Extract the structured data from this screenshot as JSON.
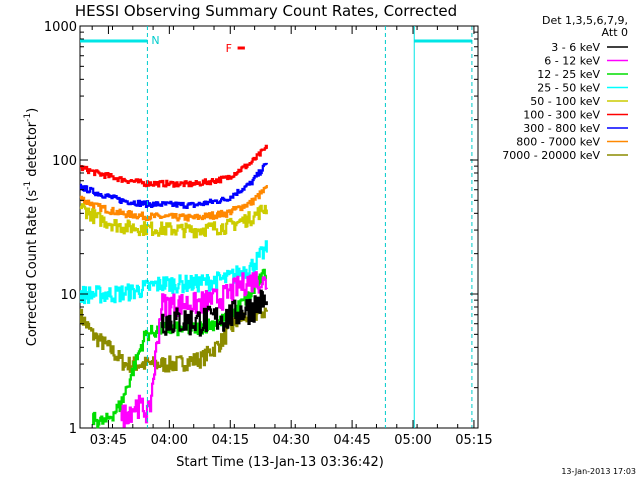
{
  "chart_data": {
    "type": "line",
    "title": "HESSI Observing Summary Count Rates, Corrected",
    "xlabel": "Start Time (13-Jan-13 03:36:42)",
    "ylabel": "Corrected Count Rate (s",
    "ylabel_sup1": "-1",
    "ylabel_mid": " detector",
    "ylabel_sup2": "-1",
    "ylabel_end": ")",
    "yscale": "log",
    "ylim": [
      1,
      1000
    ],
    "xlim_minutes_after_0336": [
      2,
      100
    ],
    "x_ticks": [
      {
        "label": "03:45",
        "min": 9
      },
      {
        "label": "04:00",
        "min": 24
      },
      {
        "label": "04:15",
        "min": 39
      },
      {
        "label": "04:30",
        "min": 54
      },
      {
        "label": "04:45",
        "min": 69
      },
      {
        "label": "05:00",
        "min": 84
      },
      {
        "label": "05:15",
        "min": 99
      }
    ],
    "y_ticks": [
      {
        "label": "1",
        "v": 1
      },
      {
        "label": "10",
        "v": 10
      },
      {
        "label": "100",
        "v": 100
      },
      {
        "label": "1000",
        "v": 1000
      }
    ],
    "legend_header": [
      "Det 1,3,5,6,7,9,",
      "Att 0"
    ],
    "series": [
      {
        "name": "3 - 6 keV",
        "color": "#000000",
        "profile": [
          [
            18,
            4.6
          ],
          [
            22,
            6.5
          ],
          [
            30,
            6.3
          ],
          [
            38,
            6.8
          ],
          [
            44,
            8
          ],
          [
            47,
            9
          ],
          [
            48,
            8
          ]
        ],
        "noise": 0.25,
        "start": 22
      },
      {
        "name": "6 - 12 keV",
        "color": "#ff00ff",
        "profile": [
          [
            10,
            1.1
          ],
          [
            16,
            1.5
          ],
          [
            19,
            1.3
          ],
          [
            22,
            8.5
          ],
          [
            30,
            8.5
          ],
          [
            37,
            9.5
          ],
          [
            42,
            12
          ],
          [
            45,
            13
          ],
          [
            48,
            12
          ]
        ],
        "noise": 0.2,
        "start": 12
      },
      {
        "name": "12 - 25 keV",
        "color": "#00dd00",
        "profile": [
          [
            4,
            1.2
          ],
          [
            8,
            1.1
          ],
          [
            12,
            1.5
          ],
          [
            18,
            5
          ],
          [
            22,
            5.5
          ],
          [
            30,
            5.5
          ],
          [
            38,
            6.5
          ],
          [
            44,
            10
          ],
          [
            48,
            15
          ]
        ],
        "noise": 0.12,
        "start": 5
      },
      {
        "name": "25 - 50 keV",
        "color": "#00ffff",
        "profile": [
          [
            2,
            10
          ],
          [
            10,
            10
          ],
          [
            15,
            10.5
          ],
          [
            22,
            12
          ],
          [
            30,
            12
          ],
          [
            38,
            13
          ],
          [
            44,
            16
          ],
          [
            48,
            22
          ]
        ],
        "noise": 0.15,
        "start": 2
      },
      {
        "name": "50 - 100 keV",
        "color": "#cccc00",
        "profile": [
          [
            2,
            45
          ],
          [
            6,
            37
          ],
          [
            12,
            32
          ],
          [
            18,
            31
          ],
          [
            30,
            30
          ],
          [
            38,
            32
          ],
          [
            44,
            37
          ],
          [
            48,
            45
          ]
        ],
        "noise": 0.12,
        "start": 2
      },
      {
        "name": "100 - 300 keV",
        "color": "#ff0000",
        "profile": [
          [
            2,
            88
          ],
          [
            6,
            80
          ],
          [
            12,
            72
          ],
          [
            18,
            67
          ],
          [
            30,
            66
          ],
          [
            38,
            73
          ],
          [
            44,
            95
          ],
          [
            48,
            125
          ]
        ],
        "noise": 0.05,
        "start": 2
      },
      {
        "name": "300 - 800 keV",
        "color": "#0000ff",
        "profile": [
          [
            2,
            63
          ],
          [
            6,
            57
          ],
          [
            12,
            50
          ],
          [
            18,
            47
          ],
          [
            30,
            46
          ],
          [
            38,
            51
          ],
          [
            44,
            67
          ],
          [
            48,
            95
          ]
        ],
        "noise": 0.05,
        "start": 2
      },
      {
        "name": "800 - 7000 keV",
        "color": "#ff8800",
        "profile": [
          [
            2,
            52
          ],
          [
            6,
            45
          ],
          [
            12,
            40
          ],
          [
            18,
            38
          ],
          [
            30,
            37
          ],
          [
            38,
            40
          ],
          [
            44,
            48
          ],
          [
            48,
            62
          ]
        ],
        "noise": 0.06,
        "start": 2
      },
      {
        "name": "7000 - 20000 keV",
        "color": "#8c8c00",
        "profile": [
          [
            2,
            7
          ],
          [
            5,
            5
          ],
          [
            9,
            4
          ],
          [
            13,
            3
          ],
          [
            19,
            3
          ],
          [
            25,
            3
          ],
          [
            32,
            3.3
          ],
          [
            36,
            4.2
          ],
          [
            41,
            6.5
          ],
          [
            44,
            7
          ],
          [
            48,
            7.5
          ]
        ],
        "noise": 0.14,
        "start": 2
      }
    ],
    "annotations": {
      "n_label": "N",
      "f_label": "F",
      "saa_dashed_min": [
        18.6,
        77.2,
        98.5
      ],
      "night_bars": [
        [
          2,
          18.6
        ],
        [
          84.3,
          98.5
        ]
      ],
      "flare_bar_min": [
        40.8,
        42.6
      ]
    }
  },
  "footer_date": "13-Jan-2013 17:03"
}
